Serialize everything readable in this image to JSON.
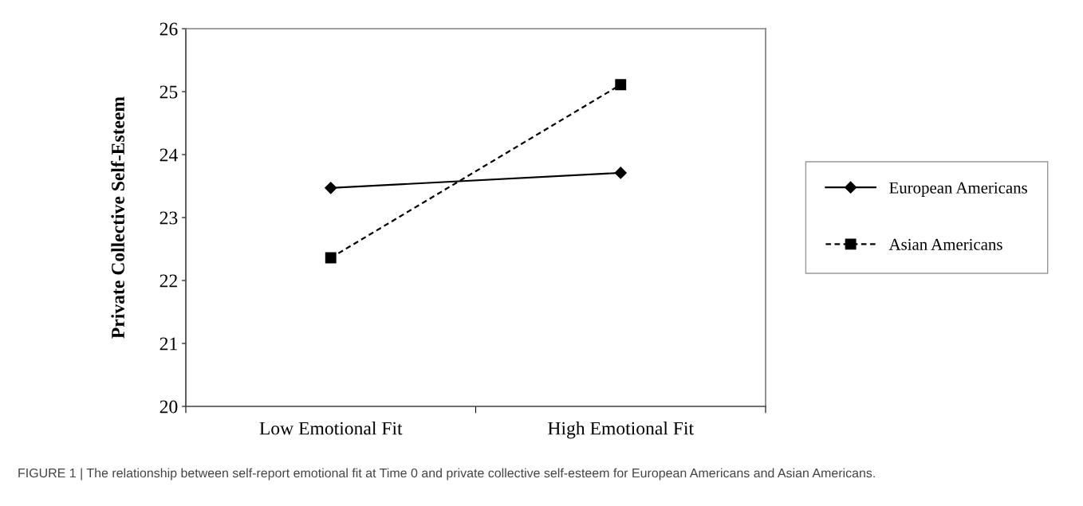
{
  "chart_data": {
    "type": "line",
    "ylabel": "Private Collective Self-Esteem",
    "categories": [
      "Low Emotional Fit",
      "High Emotional Fit"
    ],
    "series": [
      {
        "name": "European Americans",
        "color": "#000000",
        "values": [
          23.47,
          23.71
        ],
        "marker": "diamond",
        "line_style": "solid"
      },
      {
        "name": "Asian Americans",
        "color": "#000000",
        "values": [
          22.36,
          25.11
        ],
        "marker": "square",
        "line_style": "dashed"
      }
    ],
    "ylim": [
      20,
      26
    ],
    "yticks": [
      20,
      21,
      22,
      23,
      24,
      25,
      26
    ],
    "grid": false,
    "legend": "right",
    "annotations": [
      "FIGURE 1 | The relationship between self-report emotional fit at Time 0 and private collective self-esteem for European Americans and Asian Americans."
    ]
  }
}
